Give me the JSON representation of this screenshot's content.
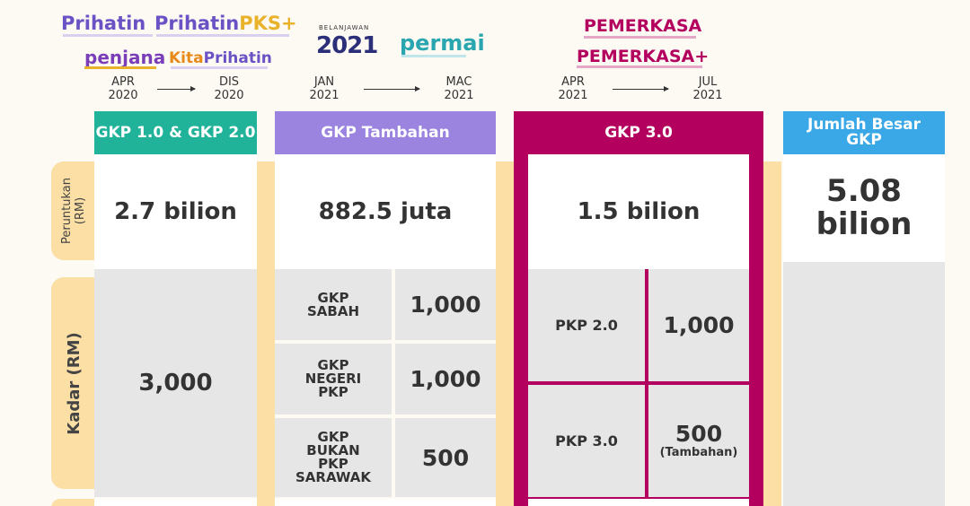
{
  "logos": {
    "prihatin": "Prihatin",
    "prihatin_pks_a": "Prihatin",
    "prihatin_pks_b": "PKS+",
    "penjana": "penjana",
    "kita_prihatin_a": "Kita",
    "kita_prihatin_b": "Prihatin",
    "belanjawan": "BELANJAWAN",
    "belanjawan_year": "2021",
    "permai": "permai",
    "pemerkasa": "PEMERKASA",
    "pemerkasa_plus": "PEMERKASA+"
  },
  "periods": [
    {
      "from": "APR\n2020",
      "to": "DIS\n2020"
    },
    {
      "from": "JAN\n2021",
      "to": "MAC\n2021"
    },
    {
      "from": "APR\n2021",
      "to": "JUL\n2021"
    }
  ],
  "headers": {
    "col1": "GKP 1.0 & GKP 2.0",
    "col2": "GKP Tambahan",
    "col3": "GKP 3.0",
    "col4": "Jumlah Besar GKP"
  },
  "row_labels": {
    "peruntukan": "Peruntukan\n(RM)",
    "kadar": "Kadar (RM)"
  },
  "peruntukan": {
    "col1": "2.7 bilion",
    "col2": "882.5 juta",
    "col3": "1.5 bilion",
    "col4": "5.08\nbilion"
  },
  "kadar": {
    "col1": "3,000",
    "col2": [
      {
        "label": "GKP\nSABAH",
        "value": "1,000"
      },
      {
        "label": "GKP\nNEGERI\nPKP",
        "value": "1,000"
      },
      {
        "label": "GKP\nBUKAN\nPKP\nSARAWAK",
        "value": "500"
      }
    ],
    "col3": [
      {
        "label": "PKP 2.0",
        "value": "1,000",
        "note": ""
      },
      {
        "label": "PKP 3.0",
        "value": "500",
        "note": "(Tambahan)"
      }
    ]
  },
  "colors": {
    "col1": "#20b39a",
    "col2": "#9a84e0",
    "col3": "#b3005f",
    "col4": "#3aa7e6",
    "side": "#fbdfa4"
  }
}
